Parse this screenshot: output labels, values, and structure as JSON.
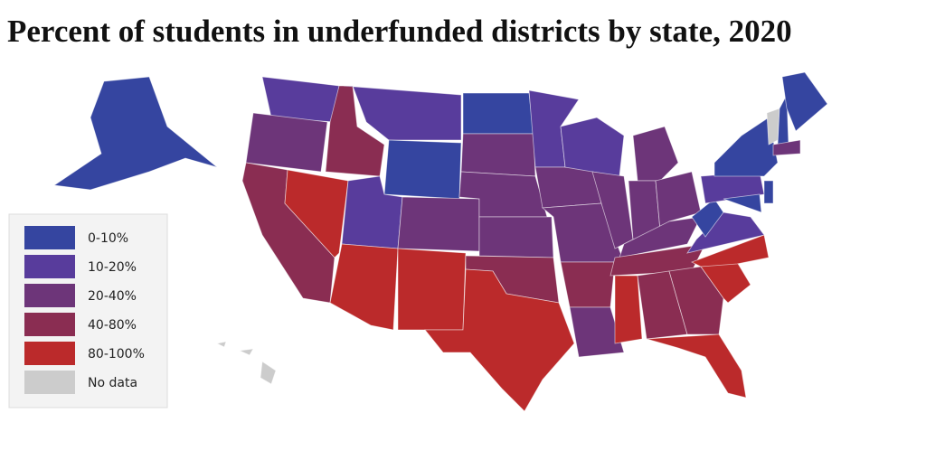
{
  "title": "Percent of students in underfunded districts by state, 2020",
  "legend": [
    {
      "label": "0-10%",
      "color": "#3545a0"
    },
    {
      "label": "10-20%",
      "color": "#583c9c"
    },
    {
      "label": "20-40%",
      "color": "#6d3579"
    },
    {
      "label": "40-80%",
      "color": "#8a2d52"
    },
    {
      "label": "80-100%",
      "color": "#bb2a2b"
    },
    {
      "label": "No data",
      "color": "#cccccc"
    }
  ]
}
